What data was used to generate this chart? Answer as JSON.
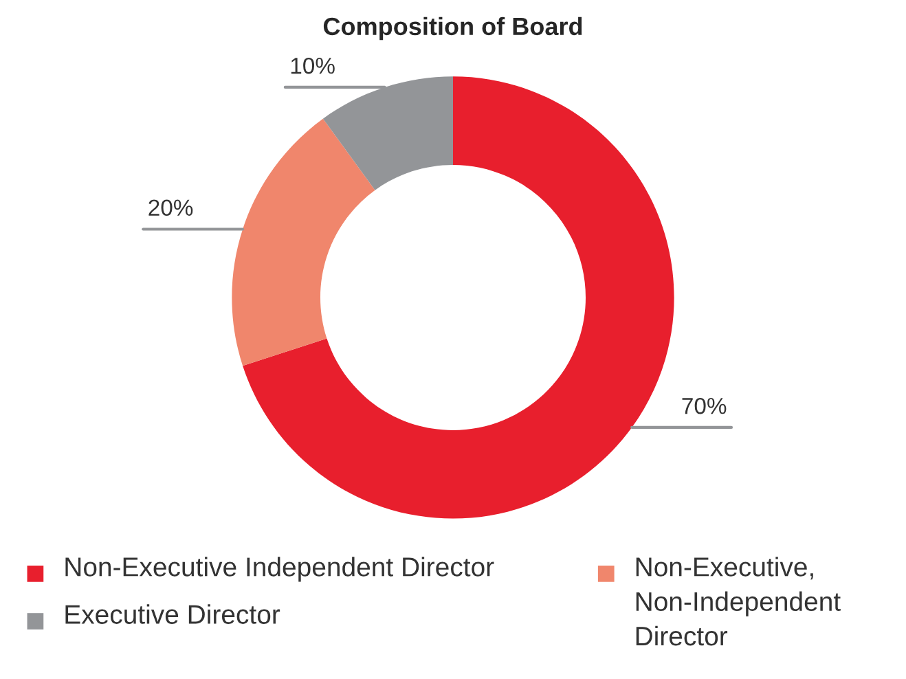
{
  "chart_data": {
    "type": "donut",
    "title": "Composition of Board",
    "categories": [
      "Non-Executive Independent Director",
      "Non-Executive, Non-Independent Director",
      "Executive Director"
    ],
    "values": [
      70,
      20,
      10
    ],
    "colors": [
      "#e81f2d",
      "#f0866c",
      "#939598"
    ],
    "value_labels": [
      "70%",
      "20%",
      "10%"
    ],
    "legend": "bottom"
  }
}
